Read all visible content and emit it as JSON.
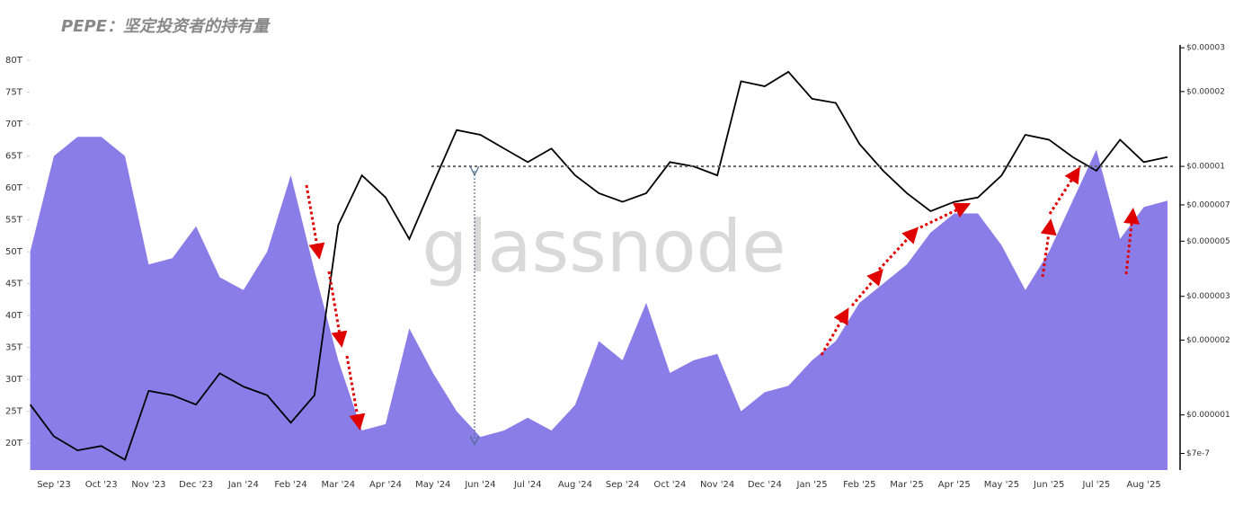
{
  "chart_data": {
    "type": "area-line",
    "title": "PEPE：坚定投资者的持有量",
    "watermark": "glassnode",
    "categories": [
      null,
      "Sep '23",
      null,
      "Oct '23",
      null,
      "Nov '23",
      null,
      "Dec '23",
      null,
      "Jan '24",
      null,
      "Feb '24",
      null,
      "Mar '24",
      null,
      "Apr '24",
      null,
      "May '24",
      null,
      "Jun '24",
      null,
      "Jul '24",
      null,
      "Aug '24",
      null,
      "Sep '24",
      null,
      "Oct '24",
      null,
      "Nov '24",
      null,
      "Dec '24",
      null,
      "Jan '25",
      null,
      "Feb '25",
      null,
      "Mar '25",
      null,
      "Apr '25",
      null,
      "May '25",
      null,
      "Jun '25",
      null,
      "Jul '25",
      null,
      "Aug '25",
      null
    ],
    "series": [
      {
        "type": "area",
        "color": "#8a7de8",
        "axis": "y",
        "values": [
          50,
          65,
          68,
          68,
          65,
          48,
          49,
          54,
          46,
          44,
          50,
          62,
          47,
          33,
          22,
          23,
          38,
          31,
          25,
          21,
          22,
          24,
          22,
          26,
          36,
          33,
          42,
          31,
          33,
          34,
          25,
          28,
          29,
          33,
          36,
          42,
          45,
          48,
          53,
          56,
          56,
          51,
          44,
          50,
          58,
          66,
          52,
          57,
          58
        ]
      },
      {
        "type": "line",
        "color": "#000000",
        "axis": "y2",
        "values": [
          1.1e-06,
          8.2e-07,
          7.2e-07,
          7.5e-07,
          6.6e-07,
          1.25e-06,
          1.2e-06,
          1.1e-06,
          1.47e-06,
          1.3e-06,
          1.2e-06,
          9.3e-07,
          1.2e-06,
          5.8e-06,
          9.2e-06,
          7.5e-06,
          5.1e-06,
          8.5e-06,
          1.4e-05,
          1.34e-05,
          1.18e-05,
          1.04e-05,
          1.18e-05,
          9.2e-06,
          7.8e-06,
          7.2e-06,
          7.8e-06,
          1.04e-05,
          1e-05,
          9.2e-06,
          2.2e-05,
          2.1e-05,
          2.4e-05,
          1.87e-05,
          1.8e-05,
          1.23e-05,
          9.6e-06,
          7.8e-06,
          6.6e-06,
          7.2e-06,
          7.5e-06,
          9.2e-06,
          1.34e-05,
          1.28e-05,
          1.09e-05,
          9.6e-06,
          1.28e-05,
          1.04e-05,
          1.09e-05
        ]
      }
    ],
    "ylim": [
      15.8,
      82.4
    ],
    "yticks": [
      {
        "value": 20,
        "label": "20T"
      },
      {
        "value": 25,
        "label": "25T"
      },
      {
        "value": 30,
        "label": "30T"
      },
      {
        "value": 35,
        "label": "35T"
      },
      {
        "value": 40,
        "label": "40T"
      },
      {
        "value": 45,
        "label": "45T"
      },
      {
        "value": 50,
        "label": "50T"
      },
      {
        "value": 55,
        "label": "55T"
      },
      {
        "value": 60,
        "label": "60T"
      },
      {
        "value": 65,
        "label": "65T"
      },
      {
        "value": 70,
        "label": "70T"
      },
      {
        "value": 75,
        "label": "75T"
      },
      {
        "value": 80,
        "label": "80T"
      }
    ],
    "y2lim": [
      6e-07,
      3.08e-05
    ],
    "y2log": true,
    "y2ticks": [
      {
        "value": 7e-07,
        "label": "$7e-7"
      },
      {
        "value": 1e-06,
        "label": "$0.000001"
      },
      {
        "value": 2e-06,
        "label": "$0.000002"
      },
      {
        "value": 3e-06,
        "label": "$0.000003"
      },
      {
        "value": 5e-06,
        "label": "$0.000005"
      },
      {
        "value": 7e-06,
        "label": "$0.000007"
      },
      {
        "value": 1e-05,
        "label": "$0.00001"
      },
      {
        "value": 2e-05,
        "label": "$0.00002"
      },
      {
        "value": 3e-05,
        "label": "$0.00003"
      }
    ],
    "reference_line": {
      "value": 1e-05,
      "axis": "y2",
      "color": "#666666"
    },
    "grid": false
  }
}
